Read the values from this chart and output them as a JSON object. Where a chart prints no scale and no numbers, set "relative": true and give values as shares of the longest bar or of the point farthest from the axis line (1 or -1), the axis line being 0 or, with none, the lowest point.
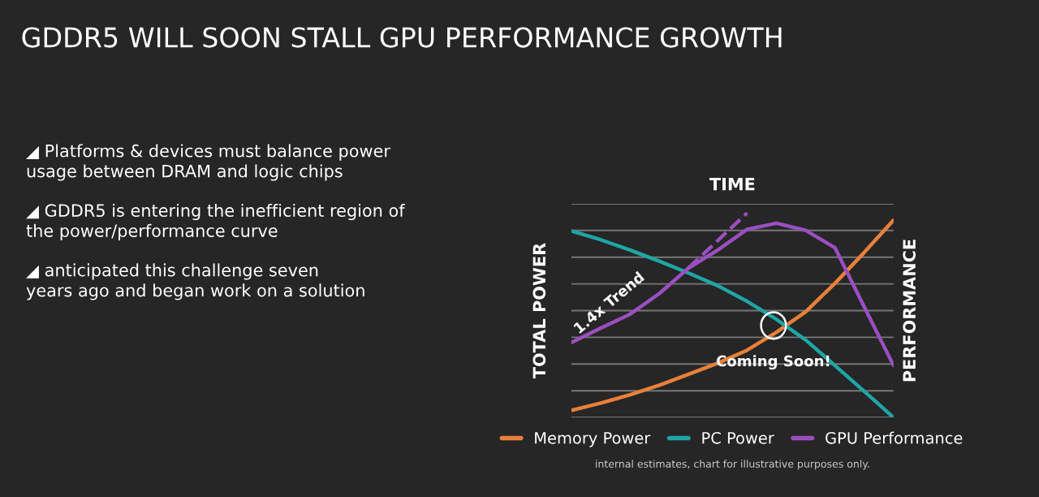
{
  "chart_data": {
    "type": "line",
    "title": "GDDR5 WILL SOON STALL GPU PERFORMANCE GROWTH",
    "xlabel": "TIME",
    "ylabel": "TOTAL POWER",
    "y2label": "PERFORMANCE",
    "relative": true,
    "grid": "y",
    "legend": "bottom",
    "marker": "none",
    "categories": [
      null,
      null,
      null,
      null,
      null,
      null,
      null,
      null,
      null,
      null,
      null,
      null
    ],
    "series": [
      {
        "name": "Memory Power",
        "color": "#e8803a",
        "values": [
          0.035,
          0.07,
          0.111,
          0.158,
          0.211,
          0.266,
          0.329,
          0.417,
          0.517,
          0.656,
          0.807,
          0.965
        ]
      },
      {
        "name": "PC Power",
        "color": "#1fa5a5",
        "values": [
          0.912,
          0.869,
          0.819,
          0.764,
          0.706,
          0.644,
          0.568,
          0.48,
          0.379,
          0.254,
          0.128,
          0
        ]
      },
      {
        "name": "GPU Performance",
        "color": "#9a4fc0",
        "values": [
          0.367,
          0.437,
          0.505,
          0.606,
          0.731,
          0.819,
          0.92,
          0.95,
          0.915,
          0.83,
          0.54,
          0.254
        ]
      },
      {
        "color": "#9a4fc0",
        "line_style": "dashed",
        "values": [
          null,
          null,
          null,
          null,
          0.731,
          null,
          1.0,
          null,
          null,
          null,
          null,
          null
        ]
      }
    ],
    "annotations": [
      "◢ Platforms & devices must balance power\nusage between DRAM and logic chips",
      "◢ GDDR5 is entering the inefficient region of\nthe power/performance curve",
      "◢ anticipated this challenge seven\nyears ago and began work on a solution",
      "1.4x Trend",
      "Coming Soon!",
      "internal estimates, chart for illustrative purposes only."
    ]
  }
}
